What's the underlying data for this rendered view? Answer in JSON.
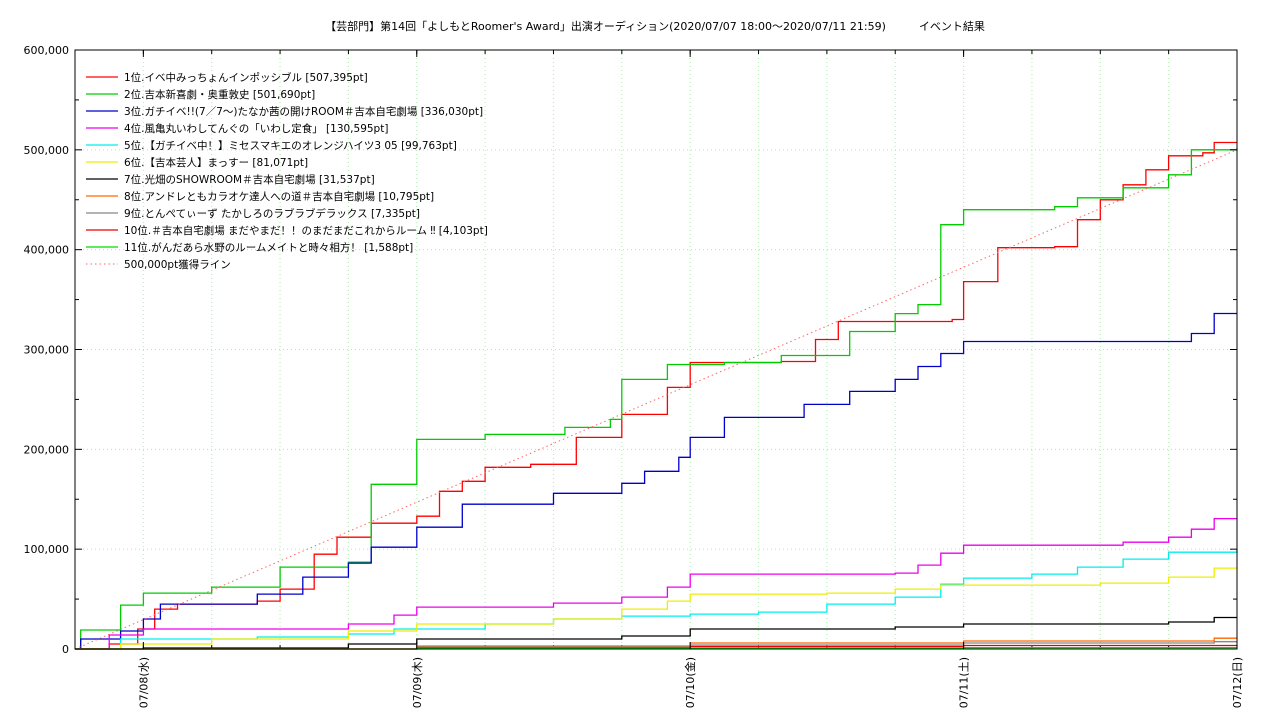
{
  "chart_data": {
    "type": "line",
    "title": "【芸部門】第14回「よしもとRoomer's Award」出演オーディション(2020/07/07 18:00～2020/07/11 21:59)　　　イベント結果",
    "xlabel": "",
    "ylabel": "",
    "x_range": [
      "2020/07/07 18:00",
      "2020/07/12 00:00"
    ],
    "ylim": [
      0,
      600000
    ],
    "y_ticks": [
      "0",
      "100,000",
      "200,000",
      "300,000",
      "400,000",
      "500,000",
      "600,000"
    ],
    "y_tick_values": [
      0,
      100000,
      200000,
      300000,
      400000,
      500000,
      600000
    ],
    "x_ticks": [
      "07/08(水)",
      "07/09(木)",
      "07/10(金)",
      "07/11(土)",
      "07/12(日)"
    ],
    "x_tick_values": [
      "2020/07/08 00:00",
      "2020/07/09 00:00",
      "2020/07/10 00:00",
      "2020/07/11 00:00",
      "2020/07/12 00:00"
    ],
    "grid": true,
    "legend_position": "top-left",
    "series": [
      {
        "name": "1位.イベ中みっちょんインポッシブル [507,395pt]",
        "color": "#ff0000",
        "style": "step",
        "points": [
          [
            "07/07 18:00",
            0
          ],
          [
            "07/07 21:00",
            5000
          ],
          [
            "07/07 23:30",
            20000
          ],
          [
            "07/08 01:00",
            40000
          ],
          [
            "07/08 03:00",
            45000
          ],
          [
            "07/08 10:00",
            48000
          ],
          [
            "07/08 12:00",
            60000
          ],
          [
            "07/08 15:00",
            95000
          ],
          [
            "07/08 17:00",
            112000
          ],
          [
            "07/08 20:00",
            126000
          ],
          [
            "07/09 00:00",
            133000
          ],
          [
            "07/09 02:00",
            158000
          ],
          [
            "07/09 04:00",
            168000
          ],
          [
            "07/09 06:00",
            182000
          ],
          [
            "07/09 10:00",
            185000
          ],
          [
            "07/09 14:00",
            212000
          ],
          [
            "07/09 18:00",
            235000
          ],
          [
            "07/09 22:00",
            262000
          ],
          [
            "07/10 00:00",
            287000
          ],
          [
            "07/10 08:00",
            288000
          ],
          [
            "07/10 11:00",
            310000
          ],
          [
            "07/10 13:00",
            328000
          ],
          [
            "07/10 23:00",
            330000
          ],
          [
            "07/11 00:00",
            368000
          ],
          [
            "07/11 03:00",
            402000
          ],
          [
            "07/11 08:00",
            403000
          ],
          [
            "07/11 10:00",
            430000
          ],
          [
            "07/11 12:00",
            450000
          ],
          [
            "07/11 14:00",
            465000
          ],
          [
            "07/11 16:00",
            480000
          ],
          [
            "07/11 18:00",
            494000
          ],
          [
            "07/11 21:00",
            497000
          ],
          [
            "07/11 22:00",
            507395
          ],
          [
            "07/12 00:00",
            507395
          ]
        ]
      },
      {
        "name": "2位.吉本新喜劇・奥重敦史 [501,690pt]",
        "color": "#00cc00",
        "style": "step",
        "points": [
          [
            "07/07 18:00",
            0
          ],
          [
            "07/07 18:30",
            19000
          ],
          [
            "07/07 22:00",
            44000
          ],
          [
            "07/08 00:00",
            56000
          ],
          [
            "07/08 06:00",
            62000
          ],
          [
            "07/08 12:00",
            82000
          ],
          [
            "07/08 18:00",
            87000
          ],
          [
            "07/08 20:00",
            165000
          ],
          [
            "07/09 00:00",
            210000
          ],
          [
            "07/09 06:00",
            215000
          ],
          [
            "07/09 13:00",
            222000
          ],
          [
            "07/09 17:00",
            230000
          ],
          [
            "07/09 18:00",
            270000
          ],
          [
            "07/09 22:00",
            285000
          ],
          [
            "07/10 03:00",
            287000
          ],
          [
            "07/10 08:00",
            294000
          ],
          [
            "07/10 14:00",
            318000
          ],
          [
            "07/10 18:00",
            336000
          ],
          [
            "07/10 20:00",
            345000
          ],
          [
            "07/10 22:00",
            425000
          ],
          [
            "07/11 00:00",
            440000
          ],
          [
            "07/11 08:00",
            443000
          ],
          [
            "07/11 10:00",
            452000
          ],
          [
            "07/11 14:00",
            462000
          ],
          [
            "07/11 18:00",
            475000
          ],
          [
            "07/11 20:00",
            500000
          ],
          [
            "07/12 00:00",
            501690
          ]
        ]
      },
      {
        "name": "3位.ガチイベ!!(7／7〜)たなか茜の開けROOM＃吉本自宅劇場 [336,030pt]",
        "color": "#0000cc",
        "style": "step",
        "points": [
          [
            "07/07 18:00",
            0
          ],
          [
            "07/07 18:30",
            10000
          ],
          [
            "07/07 22:00",
            18000
          ],
          [
            "07/08 00:00",
            30000
          ],
          [
            "07/08 01:30",
            45000
          ],
          [
            "07/08 10:00",
            55000
          ],
          [
            "07/08 14:00",
            72000
          ],
          [
            "07/08 18:00",
            86000
          ],
          [
            "07/08 20:00",
            102000
          ],
          [
            "07/09 00:00",
            122000
          ],
          [
            "07/09 04:00",
            145000
          ],
          [
            "07/09 12:00",
            156000
          ],
          [
            "07/09 18:00",
            166000
          ],
          [
            "07/09 20:00",
            178000
          ],
          [
            "07/09 23:00",
            192000
          ],
          [
            "07/10 00:00",
            212000
          ],
          [
            "07/10 03:00",
            232000
          ],
          [
            "07/10 06:00",
            232000
          ],
          [
            "07/10 10:00",
            245000
          ],
          [
            "07/10 14:00",
            258000
          ],
          [
            "07/10 18:00",
            270000
          ],
          [
            "07/10 20:00",
            283000
          ],
          [
            "07/10 22:00",
            296000
          ],
          [
            "07/11 00:00",
            308000
          ],
          [
            "07/11 12:00",
            308000
          ],
          [
            "07/11 20:00",
            316000
          ],
          [
            "07/11 22:00",
            336030
          ],
          [
            "07/12 00:00",
            336030
          ]
        ]
      },
      {
        "name": "4位.風亀丸いわしてんぐの「いわし定食」 [130,595pt]",
        "color": "#ee00ee",
        "style": "step",
        "points": [
          [
            "07/07 18:00",
            0
          ],
          [
            "07/07 21:00",
            14000
          ],
          [
            "07/08 00:00",
            20000
          ],
          [
            "07/08 18:00",
            25000
          ],
          [
            "07/08 22:00",
            34000
          ],
          [
            "07/09 00:00",
            42000
          ],
          [
            "07/09 12:00",
            46000
          ],
          [
            "07/09 18:00",
            52000
          ],
          [
            "07/09 22:00",
            62000
          ],
          [
            "07/10 00:00",
            75000
          ],
          [
            "07/10 18:00",
            76000
          ],
          [
            "07/10 20:00",
            84000
          ],
          [
            "07/10 22:00",
            96000
          ],
          [
            "07/11 00:00",
            104000
          ],
          [
            "07/11 14:00",
            107000
          ],
          [
            "07/11 18:00",
            112000
          ],
          [
            "07/11 20:00",
            120000
          ],
          [
            "07/11 22:00",
            130595
          ],
          [
            "07/12 00:00",
            130595
          ]
        ]
      },
      {
        "name": "5位.【ガチイベ中！】ミセスマキエのオレンジハイツ3 05 [99,763pt]",
        "color": "#00eeee",
        "style": "step",
        "points": [
          [
            "07/07 18:00",
            0
          ],
          [
            "07/07 22:00",
            10000
          ],
          [
            "07/08 10:00",
            12000
          ],
          [
            "07/08 18:00",
            15000
          ],
          [
            "07/08 22:00",
            20000
          ],
          [
            "07/09 06:00",
            25000
          ],
          [
            "07/09 12:00",
            30000
          ],
          [
            "07/09 18:00",
            33000
          ],
          [
            "07/10 00:00",
            35000
          ],
          [
            "07/10 06:00",
            37000
          ],
          [
            "07/10 12:00",
            45000
          ],
          [
            "07/10 18:00",
            52000
          ],
          [
            "07/10 22:00",
            65000
          ],
          [
            "07/11 00:00",
            71000
          ],
          [
            "07/11 06:00",
            75000
          ],
          [
            "07/11 10:00",
            82000
          ],
          [
            "07/11 14:00",
            90000
          ],
          [
            "07/11 18:00",
            97000
          ],
          [
            "07/12 00:00",
            99763
          ]
        ]
      },
      {
        "name": "6位.【吉本芸人】まっすー [81,071pt]",
        "color": "#eeee00",
        "style": "step",
        "points": [
          [
            "07/07 18:00",
            0
          ],
          [
            "07/07 22:00",
            5000
          ],
          [
            "07/08 06:00",
            10000
          ],
          [
            "07/08 18:00",
            18000
          ],
          [
            "07/09 00:00",
            25000
          ],
          [
            "07/09 12:00",
            30000
          ],
          [
            "07/09 18:00",
            40000
          ],
          [
            "07/09 22:00",
            48000
          ],
          [
            "07/10 00:00",
            55000
          ],
          [
            "07/10 12:00",
            56000
          ],
          [
            "07/10 18:00",
            60000
          ],
          [
            "07/10 22:00",
            64000
          ],
          [
            "07/11 12:00",
            66000
          ],
          [
            "07/11 18:00",
            72000
          ],
          [
            "07/11 22:00",
            81071
          ],
          [
            "07/12 00:00",
            81071
          ]
        ]
      },
      {
        "name": "7位.光畑のSHOWROOM＃吉本自宅劇場 [31,537pt]",
        "color": "#000000",
        "style": "step",
        "points": [
          [
            "07/07 18:00",
            0
          ],
          [
            "07/08 00:00",
            1000
          ],
          [
            "07/08 18:00",
            5000
          ],
          [
            "07/09 00:00",
            10000
          ],
          [
            "07/09 18:00",
            13000
          ],
          [
            "07/10 00:00",
            20000
          ],
          [
            "07/10 18:00",
            22000
          ],
          [
            "07/11 00:00",
            25000
          ],
          [
            "07/11 18:00",
            27000
          ],
          [
            "07/11 22:00",
            31537
          ],
          [
            "07/12 00:00",
            31537
          ]
        ]
      },
      {
        "name": "8位.アンドレともカラオケ達人への道＃吉本自宅劇場 [10,795pt]",
        "color": "#ff6600",
        "style": "step",
        "points": [
          [
            "07/07 18:00",
            0
          ],
          [
            "07/09 00:00",
            3000
          ],
          [
            "07/10 00:00",
            6000
          ],
          [
            "07/11 00:00",
            8000
          ],
          [
            "07/11 22:00",
            10795
          ],
          [
            "07/12 00:00",
            10795
          ]
        ]
      },
      {
        "name": "9位.とんぺてぃーず たかしろのラブラブデラックス [7,335pt]",
        "color": "#888888",
        "style": "step",
        "points": [
          [
            "07/07 18:00",
            0
          ],
          [
            "07/09 00:00",
            2000
          ],
          [
            "07/10 00:00",
            4000
          ],
          [
            "07/11 00:00",
            6000
          ],
          [
            "07/11 22:00",
            7335
          ],
          [
            "07/12 00:00",
            7335
          ]
        ]
      },
      {
        "name": "10位.＃吉本自宅劇場 まだやまだ！！のまだまだこれからルーム ‼ [4,103pt]",
        "color": "#ee0000",
        "style": "step",
        "points": [
          [
            "07/07 18:00",
            0
          ],
          [
            "07/09 00:00",
            1000
          ],
          [
            "07/10 00:00",
            2500
          ],
          [
            "07/11 00:00",
            3500
          ],
          [
            "07/12 00:00",
            4103
          ]
        ]
      },
      {
        "name": "11位.がんだあら水野のルームメイトと時々相方！ [1,588pt]",
        "color": "#00dd00",
        "style": "step",
        "points": [
          [
            "07/07 18:00",
            0
          ],
          [
            "07/09 00:00",
            500
          ],
          [
            "07/10 00:00",
            1000
          ],
          [
            "07/11 00:00",
            1300
          ],
          [
            "07/12 00:00",
            1588
          ]
        ]
      },
      {
        "name": "500,000pt獲得ライン",
        "color": "#ff6666",
        "style": "dotted",
        "points": [
          [
            "07/07 18:00",
            0
          ],
          [
            "07/12 00:00",
            500000
          ]
        ]
      }
    ]
  }
}
